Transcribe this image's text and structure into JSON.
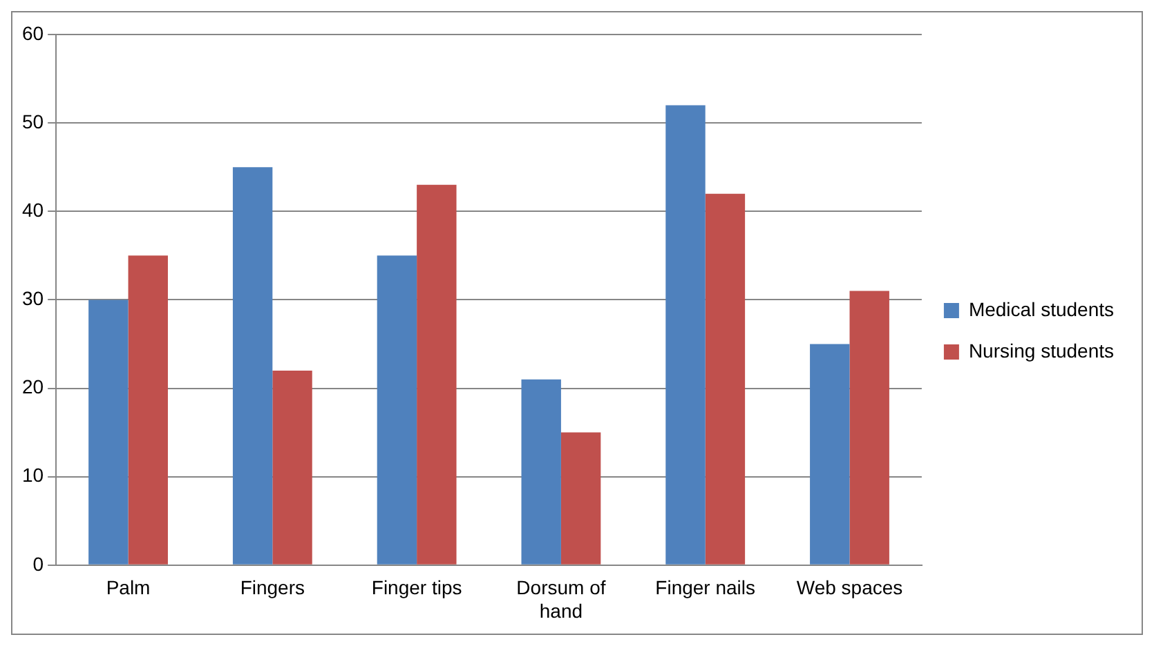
{
  "chart_data": {
    "type": "bar",
    "categories": [
      "Palm",
      "Fingers",
      "Finger tips",
      "Dorsum of hand",
      "Finger nails",
      "Web spaces"
    ],
    "series": [
      {
        "name": "Medical students",
        "color": "#4f81bd",
        "values": [
          30,
          45,
          35,
          21,
          52,
          25
        ]
      },
      {
        "name": "Nursing students",
        "color": "#c0504d",
        "values": [
          35,
          22,
          43,
          15,
          42,
          31
        ]
      }
    ],
    "ylim": [
      0,
      60
    ],
    "yticks": [
      0,
      10,
      20,
      30,
      40,
      50,
      60
    ],
    "grid": "y",
    "legend": "right"
  }
}
